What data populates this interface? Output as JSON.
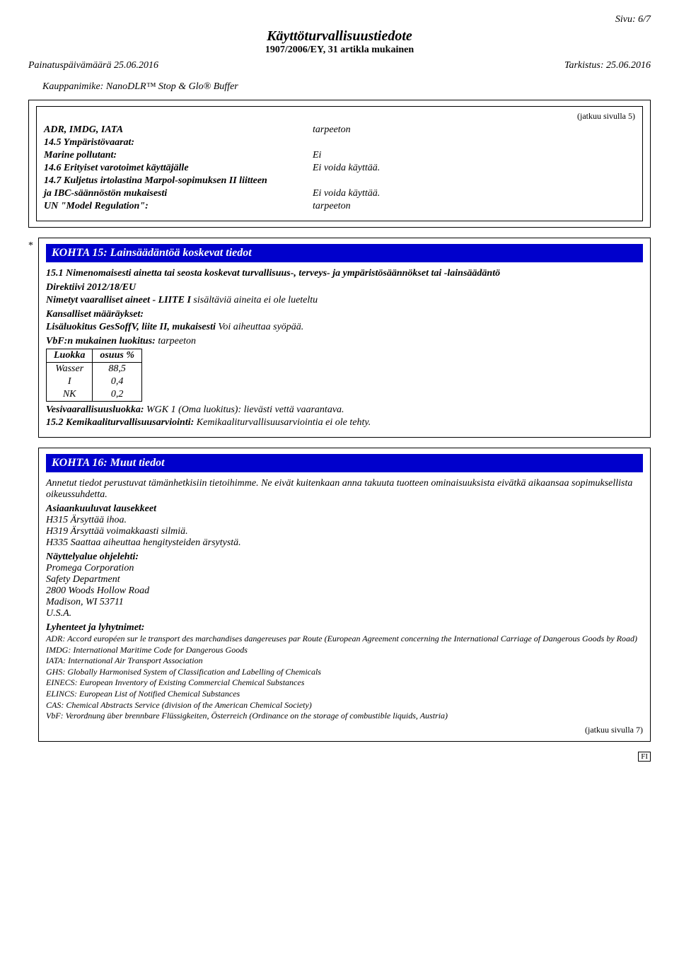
{
  "page_number_label": "Sivu: 6/7",
  "doc_title": "Käyttöturvallisuustiedote",
  "doc_subtitle": "1907/2006/EY, 31 artikla mukainen",
  "print_date_label": "Painatuspäivämäärä 25.06.2016",
  "revision_label": "Tarkistus: 25.06.2016",
  "trade_name_label": "Kauppanimike: NanoDLR™ Stop & Glo® Buffer",
  "cont_from": "(jatkuu sivulla 5)",
  "transport": {
    "adr_label": "ADR, IMDG, IATA",
    "adr_value": "tarpeeton",
    "env_hazard_heading": "14.5 Ympäristövaarat:",
    "marine_label": "Marine pollutant:",
    "marine_value": "Ei",
    "precautions_label": "14.6 Erityiset varotoimet käyttäjälle",
    "precautions_value": "Ei voida käyttää.",
    "bulk_label1": "14.7 Kuljetus irtolastina Marpol-sopimuksen II liitteen",
    "bulk_label2": "ja IBC-säännöstön mukaisesti",
    "bulk_value": "Ei voida käyttää.",
    "un_label": "UN \"Model Regulation\":",
    "un_value": "tarpeeton"
  },
  "section15": {
    "heading": "KOHTA 15: Lainsäädäntöä koskevat tiedot",
    "para1a": "15.1 Nimenomaisesti ainetta tai seosta koskevat turvallisuus-, terveys- ja ympäristösäännökset tai -lainsäädäntö",
    "directive_heading": "Direktiivi 2012/18/EU",
    "directive_line_b": "Nimetyt vaaralliset aineet - LIITE I",
    "directive_line_i": " sisältäviä aineita ei ole lueteltu",
    "national_heading": "Kansalliset määräykset:",
    "gessoff_b": "Lisäluokitus GesSoffV, liite II, mukaisesti",
    "gessoff_i": " Voi aiheuttaa syöpää.",
    "vbf_b": "VbF:n mukainen luokitus:",
    "vbf_i": " tarpeeton",
    "table": {
      "headers": [
        "Luokka",
        "osuus %"
      ],
      "rows": [
        [
          "Wasser",
          "88,5"
        ],
        [
          "I",
          "0,4"
        ],
        [
          "NK",
          "0,2"
        ]
      ]
    },
    "wgk_b": "Vesivaarallisuusluokka:",
    "wgk_i": " WGK 1 (Oma luokitus): lievästi vettä vaarantava.",
    "assess_b": "15.2 Kemikaaliturvallisuusarviointi:",
    "assess_i": " Kemikaaliturvallisuusarviointia ei ole tehty."
  },
  "section16": {
    "heading": "KOHTA 16: Muut tiedot",
    "intro": "Annetut tiedot perustuvat tämänhetkisiin tietoihimme. Ne eivät kuitenkaan anna takuuta tuotteen ominaisuuksista eivätkä aikaansaa sopimuksellista oikeussuhdetta.",
    "phrases_heading": "Asiaankuuluvat lausekkeet",
    "h315": "H315 Ärsyttää ihoa.",
    "h319": "H319 Ärsyttää voimakkaasti silmiä.",
    "h335": "H335 Saattaa aiheuttaa hengitysteiden ärsytystä.",
    "dept_heading": "Näyttelyalue ohjelehti:",
    "dept_lines": [
      "Promega Corporation",
      "Safety Department",
      "2800 Woods Hollow Road",
      "Madison, WI 53711",
      "U.S.A."
    ],
    "abbrev_heading": "Lyhenteet ja lyhytnimet:",
    "abbrevs": [
      "ADR: Accord européen sur le transport des marchandises dangereuses par Route (European Agreement concerning the International Carriage of Dangerous Goods by Road)",
      "IMDG: International Maritime Code for Dangerous Goods",
      "IATA: International Air Transport Association",
      "GHS: Globally Harmonised System of Classification and Labelling of Chemicals",
      "EINECS: European Inventory of Existing Commercial Chemical Substances",
      "ELINCS: European List of Notified Chemical Substances",
      "CAS: Chemical Abstracts Service (division of the American Chemical Society)",
      "VbF: Verordnung über brennbare Flüssigkeiten, Österreich (Ordinance on the storage of combustible liquids, Austria)"
    ],
    "cont_next": "(jatkuu sivulla 7)",
    "fi": "FI"
  }
}
